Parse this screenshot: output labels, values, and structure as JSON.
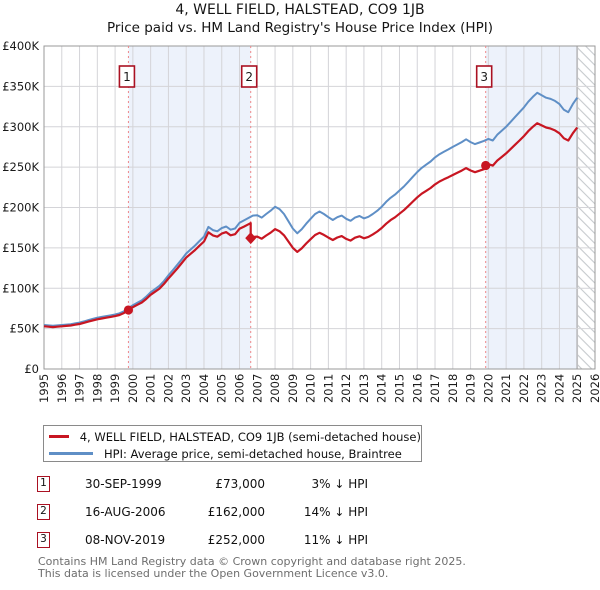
{
  "title": "4, WELL FIELD, HALSTEAD, CO9 1JB",
  "subtitle": "Price paid vs. HM Land Registry's House Price Index (HPI)",
  "legend": {
    "property": "4, WELL FIELD, HALSTEAD, CO9 1JB (semi-detached house)",
    "hpi": "HPI: Average price, semi-detached house, Braintree"
  },
  "transactions": [
    {
      "num": "1",
      "date": "30-SEP-1999",
      "price": "£73,000",
      "hpi_diff": "3% ↓ HPI"
    },
    {
      "num": "2",
      "date": "16-AUG-2006",
      "price": "£162,000",
      "hpi_diff": "14% ↓ HPI"
    },
    {
      "num": "3",
      "date": "08-NOV-2019",
      "price": "£252,000",
      "hpi_diff": "11% ↓ HPI"
    }
  ],
  "footer": {
    "line1": "Contains HM Land Registry data © Crown copyright and database right 2025.",
    "line2": "This data is licensed under the Open Government Licence v3.0."
  },
  "chart_data": {
    "type": "line",
    "title": "4, WELL FIELD, HALSTEAD, CO9 1JB",
    "subtitle": "Price paid vs. HM Land Registry's House Price Index (HPI)",
    "xlabel": "",
    "ylabel": "",
    "xlim": [
      1995,
      2026
    ],
    "ylim_k": [
      0,
      400
    ],
    "grid": true,
    "legend_position": "below",
    "x_ticks": [
      1995,
      1996,
      1997,
      1998,
      1999,
      2000,
      2001,
      2002,
      2003,
      2004,
      2005,
      2006,
      2007,
      2008,
      2009,
      2010,
      2011,
      2012,
      2013,
      2014,
      2015,
      2016,
      2017,
      2018,
      2019,
      2020,
      2021,
      2022,
      2023,
      2024,
      2025,
      2026
    ],
    "y_ticks": [
      {
        "value_k": 0,
        "label": "£0"
      },
      {
        "value_k": 50,
        "label": "£50K"
      },
      {
        "value_k": 100,
        "label": "£100K"
      },
      {
        "value_k": 150,
        "label": "£150K"
      },
      {
        "value_k": 200,
        "label": "£200K"
      },
      {
        "value_k": 250,
        "label": "£250K"
      },
      {
        "value_k": 300,
        "label": "£300K"
      },
      {
        "value_k": 350,
        "label": "£350K"
      },
      {
        "value_k": 400,
        "label": "£400K"
      }
    ],
    "bands": [
      [
        1999.75,
        2006.63
      ],
      [
        2019.85,
        2025.0
      ]
    ],
    "hatch_region": [
      2025.0,
      2026.0
    ],
    "colors": {
      "property_line": "#c81622",
      "hpi_line": "#5f8fc6",
      "event_line": "#ef8789",
      "band": "#edf2fb",
      "grid": "#d4d4d8",
      "border": "#999999",
      "hatch": "#c6cacd",
      "badge_border": "#aa1122"
    },
    "hpi_series_name": "HPI: Average price, semi-detached house, Braintree",
    "property_series_name": "4, WELL FIELD, HALSTEAD, CO9 1JB (semi-detached house)",
    "hpi_points_k": [
      [
        1995,
        54.5
      ],
      [
        1995.25,
        54
      ],
      [
        1995.5,
        53.5
      ],
      [
        1995.75,
        54
      ],
      [
        1996,
        54.5
      ],
      [
        1996.25,
        55
      ],
      [
        1996.5,
        55.5
      ],
      [
        1996.75,
        56.5
      ],
      [
        1997,
        57.5
      ],
      [
        1997.25,
        59
      ],
      [
        1997.5,
        60.5
      ],
      [
        1997.75,
        62
      ],
      [
        1998,
        63.5
      ],
      [
        1998.25,
        64.5
      ],
      [
        1998.5,
        65.5
      ],
      [
        1998.75,
        66.5
      ],
      [
        1999,
        67.5
      ],
      [
        1999.25,
        69
      ],
      [
        1999.5,
        71.5
      ],
      [
        1999.75,
        75.3
      ],
      [
        2000,
        79
      ],
      [
        2000.25,
        82
      ],
      [
        2000.5,
        85
      ],
      [
        2000.75,
        89.5
      ],
      [
        2001,
        95
      ],
      [
        2001.25,
        99
      ],
      [
        2001.5,
        103
      ],
      [
        2001.75,
        109
      ],
      [
        2002,
        116
      ],
      [
        2002.25,
        122.5
      ],
      [
        2002.5,
        129
      ],
      [
        2002.75,
        136
      ],
      [
        2003,
        143
      ],
      [
        2003.25,
        148
      ],
      [
        2003.5,
        153
      ],
      [
        2003.75,
        158.5
      ],
      [
        2004,
        164
      ],
      [
        2004.25,
        176
      ],
      [
        2004.5,
        172
      ],
      [
        2004.75,
        170.5
      ],
      [
        2005,
        174.5
      ],
      [
        2005.25,
        176.5
      ],
      [
        2005.5,
        172.5
      ],
      [
        2005.75,
        174
      ],
      [
        2006,
        181
      ],
      [
        2006.25,
        184
      ],
      [
        2006.5,
        187
      ],
      [
        2006.75,
        190
      ],
      [
        2007,
        190.5
      ],
      [
        2007.25,
        187.5
      ],
      [
        2007.5,
        192
      ],
      [
        2007.75,
        196
      ],
      [
        2008,
        201
      ],
      [
        2008.25,
        198
      ],
      [
        2008.5,
        192
      ],
      [
        2008.75,
        183
      ],
      [
        2009,
        174
      ],
      [
        2009.25,
        168
      ],
      [
        2009.5,
        173
      ],
      [
        2009.75,
        180
      ],
      [
        2010,
        186
      ],
      [
        2010.25,
        192
      ],
      [
        2010.5,
        195
      ],
      [
        2010.75,
        192
      ],
      [
        2011,
        188
      ],
      [
        2011.25,
        184.5
      ],
      [
        2011.5,
        188
      ],
      [
        2011.75,
        190
      ],
      [
        2012,
        186
      ],
      [
        2012.25,
        183.5
      ],
      [
        2012.5,
        187.5
      ],
      [
        2012.75,
        189.5
      ],
      [
        2013,
        186.5
      ],
      [
        2013.25,
        188.5
      ],
      [
        2013.5,
        192
      ],
      [
        2013.75,
        196
      ],
      [
        2014,
        201
      ],
      [
        2014.25,
        207
      ],
      [
        2014.5,
        212
      ],
      [
        2014.75,
        216
      ],
      [
        2015,
        221
      ],
      [
        2015.25,
        226
      ],
      [
        2015.5,
        232
      ],
      [
        2015.75,
        238
      ],
      [
        2016,
        244
      ],
      [
        2016.25,
        249
      ],
      [
        2016.5,
        253
      ],
      [
        2016.75,
        257
      ],
      [
        2017,
        262
      ],
      [
        2017.25,
        266
      ],
      [
        2017.5,
        269
      ],
      [
        2017.75,
        272
      ],
      [
        2018,
        275
      ],
      [
        2018.25,
        278
      ],
      [
        2018.5,
        281
      ],
      [
        2018.75,
        284.5
      ],
      [
        2019,
        281
      ],
      [
        2019.25,
        278.5
      ],
      [
        2019.5,
        280.5
      ],
      [
        2019.75,
        282.5
      ],
      [
        2020,
        285
      ],
      [
        2020.25,
        283
      ],
      [
        2020.5,
        290
      ],
      [
        2020.75,
        295
      ],
      [
        2021,
        300
      ],
      [
        2021.25,
        306
      ],
      [
        2021.5,
        312
      ],
      [
        2021.75,
        318
      ],
      [
        2022,
        324
      ],
      [
        2022.25,
        331
      ],
      [
        2022.5,
        337
      ],
      [
        2022.75,
        342
      ],
      [
        2023,
        339
      ],
      [
        2023.25,
        336
      ],
      [
        2023.5,
        334.5
      ],
      [
        2023.75,
        332
      ],
      [
        2024,
        328
      ],
      [
        2024.25,
        321
      ],
      [
        2024.5,
        318
      ],
      [
        2024.75,
        328
      ],
      [
        2025,
        336
      ]
    ],
    "property_ratio_segments": [
      {
        "t0": 1995.0,
        "t1": 1999.75,
        "r0": 0.97,
        "r1": 0.97
      },
      {
        "t0": 1999.75,
        "t1": 2006.63,
        "r0": 0.97,
        "r1": 0.958
      },
      {
        "t0": 2006.63,
        "t1": 2019.85,
        "r0": 0.86,
        "r1": 0.876
      },
      {
        "t0": 2019.85,
        "t1": 2025.0,
        "r0": 0.89,
        "r1": 0.89
      }
    ],
    "sale_markers": [
      {
        "num": "1",
        "t": 1999.75,
        "price_k": 73,
        "shape": "circle"
      },
      {
        "num": "2",
        "t": 2006.63,
        "price_k": 162,
        "shape": "diamond"
      },
      {
        "num": "3",
        "t": 2019.85,
        "price_k": 252,
        "shape": "circle"
      }
    ]
  }
}
